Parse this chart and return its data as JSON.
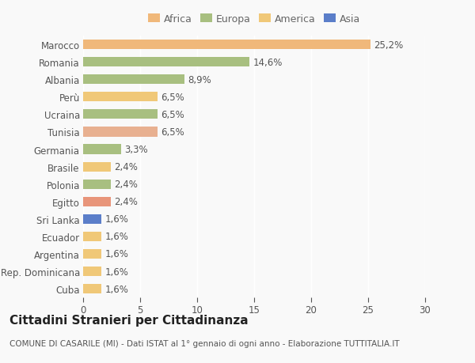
{
  "countries": [
    "Cuba",
    "Rep. Dominicana",
    "Argentina",
    "Ecuador",
    "Sri Lanka",
    "Egitto",
    "Polonia",
    "Brasile",
    "Germania",
    "Tunisia",
    "Ucraina",
    "Perù",
    "Albania",
    "Romania",
    "Marocco"
  ],
  "values": [
    1.6,
    1.6,
    1.6,
    1.6,
    1.6,
    2.4,
    2.4,
    2.4,
    3.3,
    6.5,
    6.5,
    6.5,
    8.9,
    14.6,
    25.2
  ],
  "colors": [
    "#f0c878",
    "#f0c878",
    "#f0c878",
    "#f0c878",
    "#5b7ec9",
    "#e8957a",
    "#a8bf80",
    "#f0c878",
    "#a8bf80",
    "#e8b090",
    "#a8bf80",
    "#f0c878",
    "#a8bf80",
    "#a8bf80",
    "#f0b87a"
  ],
  "labels": [
    "1,6%",
    "1,6%",
    "1,6%",
    "1,6%",
    "1,6%",
    "2,4%",
    "2,4%",
    "2,4%",
    "3,3%",
    "6,5%",
    "6,5%",
    "6,5%",
    "8,9%",
    "14,6%",
    "25,2%"
  ],
  "legend": [
    {
      "label": "Africa",
      "color": "#f0b87a"
    },
    {
      "label": "Europa",
      "color": "#a8bf80"
    },
    {
      "label": "America",
      "color": "#f0c878"
    },
    {
      "label": "Asia",
      "color": "#5b7ec9"
    }
  ],
  "title": "Cittadini Stranieri per Cittadinanza",
  "subtitle": "COMUNE DI CASARILE (MI) - Dati ISTAT al 1° gennaio di ogni anno - Elaborazione TUTTITALIA.IT",
  "xlim": [
    0,
    30
  ],
  "xticks": [
    0,
    5,
    10,
    15,
    20,
    25,
    30
  ],
  "background_color": "#f9f9f9",
  "bar_height": 0.55,
  "label_fontsize": 8.5,
  "title_fontsize": 11,
  "subtitle_fontsize": 7.5,
  "ytick_fontsize": 8.5,
  "xtick_fontsize": 8.5
}
